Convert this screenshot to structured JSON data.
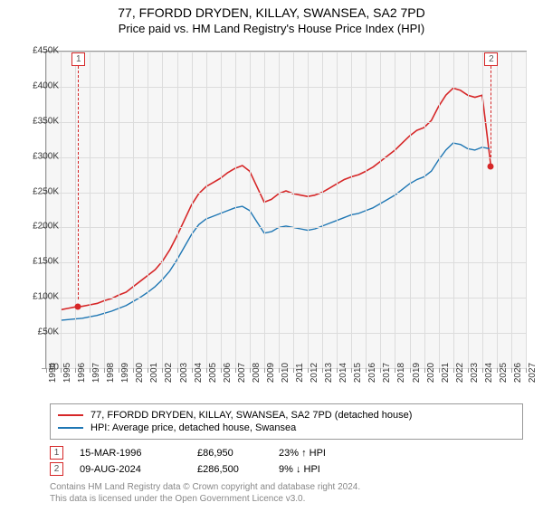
{
  "title_line1": "77, FFORDD DRYDEN, KILLAY, SWANSEA, SA2 7PD",
  "title_line2": "Price paid vs. HM Land Registry's House Price Index (HPI)",
  "chart": {
    "type": "line",
    "background_color": "#f6f6f6",
    "grid_color": "#dcdcdc",
    "border_color": "#999999",
    "y": {
      "min": 0,
      "max": 450000,
      "tick_step": 50000,
      "labels": [
        "£0",
        "£50K",
        "£100K",
        "£150K",
        "£200K",
        "£250K",
        "£300K",
        "£350K",
        "£400K",
        "£450K"
      ]
    },
    "x": {
      "min": 1994,
      "max": 2027,
      "tick_step": 1,
      "labels": [
        "1994",
        "1995",
        "1996",
        "1997",
        "1998",
        "1999",
        "2000",
        "2001",
        "2002",
        "2003",
        "2004",
        "2005",
        "2006",
        "2007",
        "2008",
        "2009",
        "2010",
        "2011",
        "2012",
        "2013",
        "2014",
        "2015",
        "2016",
        "2017",
        "2018",
        "2019",
        "2020",
        "2021",
        "2022",
        "2023",
        "2024",
        "2025",
        "2026",
        "2027"
      ]
    },
    "series": [
      {
        "name": "77, FFORDD DRYDEN, KILLAY, SWANSEA, SA2 7PD (detached house)",
        "color": "#d62728",
        "line_width": 1.6,
        "x": [
          1995,
          1995.5,
          1996,
          1996.5,
          1997,
          1997.5,
          1998,
          1998.5,
          1999,
          1999.5,
          2000,
          2000.5,
          2001,
          2001.5,
          2002,
          2002.5,
          2003,
          2003.5,
          2004,
          2004.5,
          2005,
          2005.5,
          2006,
          2006.5,
          2007,
          2007.5,
          2008,
          2008.5,
          2009,
          2009.5,
          2010,
          2010.5,
          2011,
          2011.5,
          2012,
          2012.5,
          2013,
          2013.5,
          2014,
          2014.5,
          2015,
          2015.5,
          2016,
          2016.5,
          2017,
          2017.5,
          2018,
          2018.5,
          2019,
          2019.5,
          2020,
          2020.5,
          2021,
          2021.5,
          2022,
          2022.5,
          2023,
          2023.5,
          2024,
          2024.6
        ],
        "y": [
          83000,
          85000,
          87000,
          88000,
          90000,
          92000,
          96000,
          99000,
          104000,
          108000,
          116000,
          124000,
          132000,
          140000,
          152000,
          168000,
          188000,
          210000,
          232000,
          248000,
          258000,
          264000,
          270000,
          278000,
          284000,
          288000,
          280000,
          258000,
          236000,
          240000,
          248000,
          252000,
          248000,
          246000,
          244000,
          246000,
          250000,
          256000,
          262000,
          268000,
          272000,
          275000,
          280000,
          286000,
          294000,
          302000,
          310000,
          320000,
          330000,
          338000,
          342000,
          352000,
          372000,
          388000,
          398000,
          395000,
          388000,
          385000,
          388000,
          286500
        ]
      },
      {
        "name": "HPI: Average price, detached house, Swansea",
        "color": "#1f77b4",
        "line_width": 1.4,
        "x": [
          1995,
          1995.5,
          1996,
          1996.5,
          1997,
          1997.5,
          1998,
          1998.5,
          1999,
          1999.5,
          2000,
          2000.5,
          2001,
          2001.5,
          2002,
          2002.5,
          2003,
          2003.5,
          2004,
          2004.5,
          2005,
          2005.5,
          2006,
          2006.5,
          2007,
          2007.5,
          2008,
          2008.5,
          2009,
          2009.5,
          2010,
          2010.5,
          2011,
          2011.5,
          2012,
          2012.5,
          2013,
          2013.5,
          2014,
          2014.5,
          2015,
          2015.5,
          2016,
          2016.5,
          2017,
          2017.5,
          2018,
          2018.5,
          2019,
          2019.5,
          2020,
          2020.5,
          2021,
          2021.5,
          2022,
          2022.5,
          2023,
          2023.5,
          2024,
          2024.5
        ],
        "y": [
          68000,
          69000,
          70000,
          71000,
          73000,
          75000,
          78000,
          81000,
          85000,
          89000,
          95000,
          101000,
          108000,
          116000,
          126000,
          138000,
          154000,
          172000,
          190000,
          204000,
          212000,
          216000,
          220000,
          224000,
          228000,
          230000,
          224000,
          208000,
          192000,
          194000,
          200000,
          202000,
          200000,
          198000,
          196000,
          198000,
          202000,
          206000,
          210000,
          214000,
          218000,
          220000,
          224000,
          228000,
          234000,
          240000,
          246000,
          254000,
          262000,
          268000,
          272000,
          280000,
          296000,
          310000,
          320000,
          318000,
          312000,
          310000,
          314000,
          312000
        ]
      }
    ],
    "markers": [
      {
        "index": "1",
        "color": "#d62728",
        "x": 1996.2,
        "y_box": 440000,
        "dot_y": 86950,
        "dash_from_y": 430000,
        "dash_to_y": 98000
      },
      {
        "index": "2",
        "color": "#d62728",
        "x": 2024.6,
        "y_box": 440000,
        "dot_y": 286500,
        "dash_from_y": 430000,
        "dash_to_y": 300000
      }
    ]
  },
  "legend": {
    "items": [
      {
        "label": "77, FFORDD DRYDEN, KILLAY, SWANSEA, SA2 7PD (detached house)",
        "color": "#d62728"
      },
      {
        "label": "HPI: Average price, detached house, Swansea",
        "color": "#1f77b4"
      }
    ]
  },
  "sales": [
    {
      "index": "1",
      "color": "#d62728",
      "date": "15-MAR-1996",
      "price": "£86,950",
      "pct": "23% ↑ HPI"
    },
    {
      "index": "2",
      "color": "#d62728",
      "date": "09-AUG-2024",
      "price": "£286,500",
      "pct": "9% ↓ HPI"
    }
  ],
  "footer_line1": "Contains HM Land Registry data © Crown copyright and database right 2024.",
  "footer_line2": "This data is licensed under the Open Government Licence v3.0."
}
